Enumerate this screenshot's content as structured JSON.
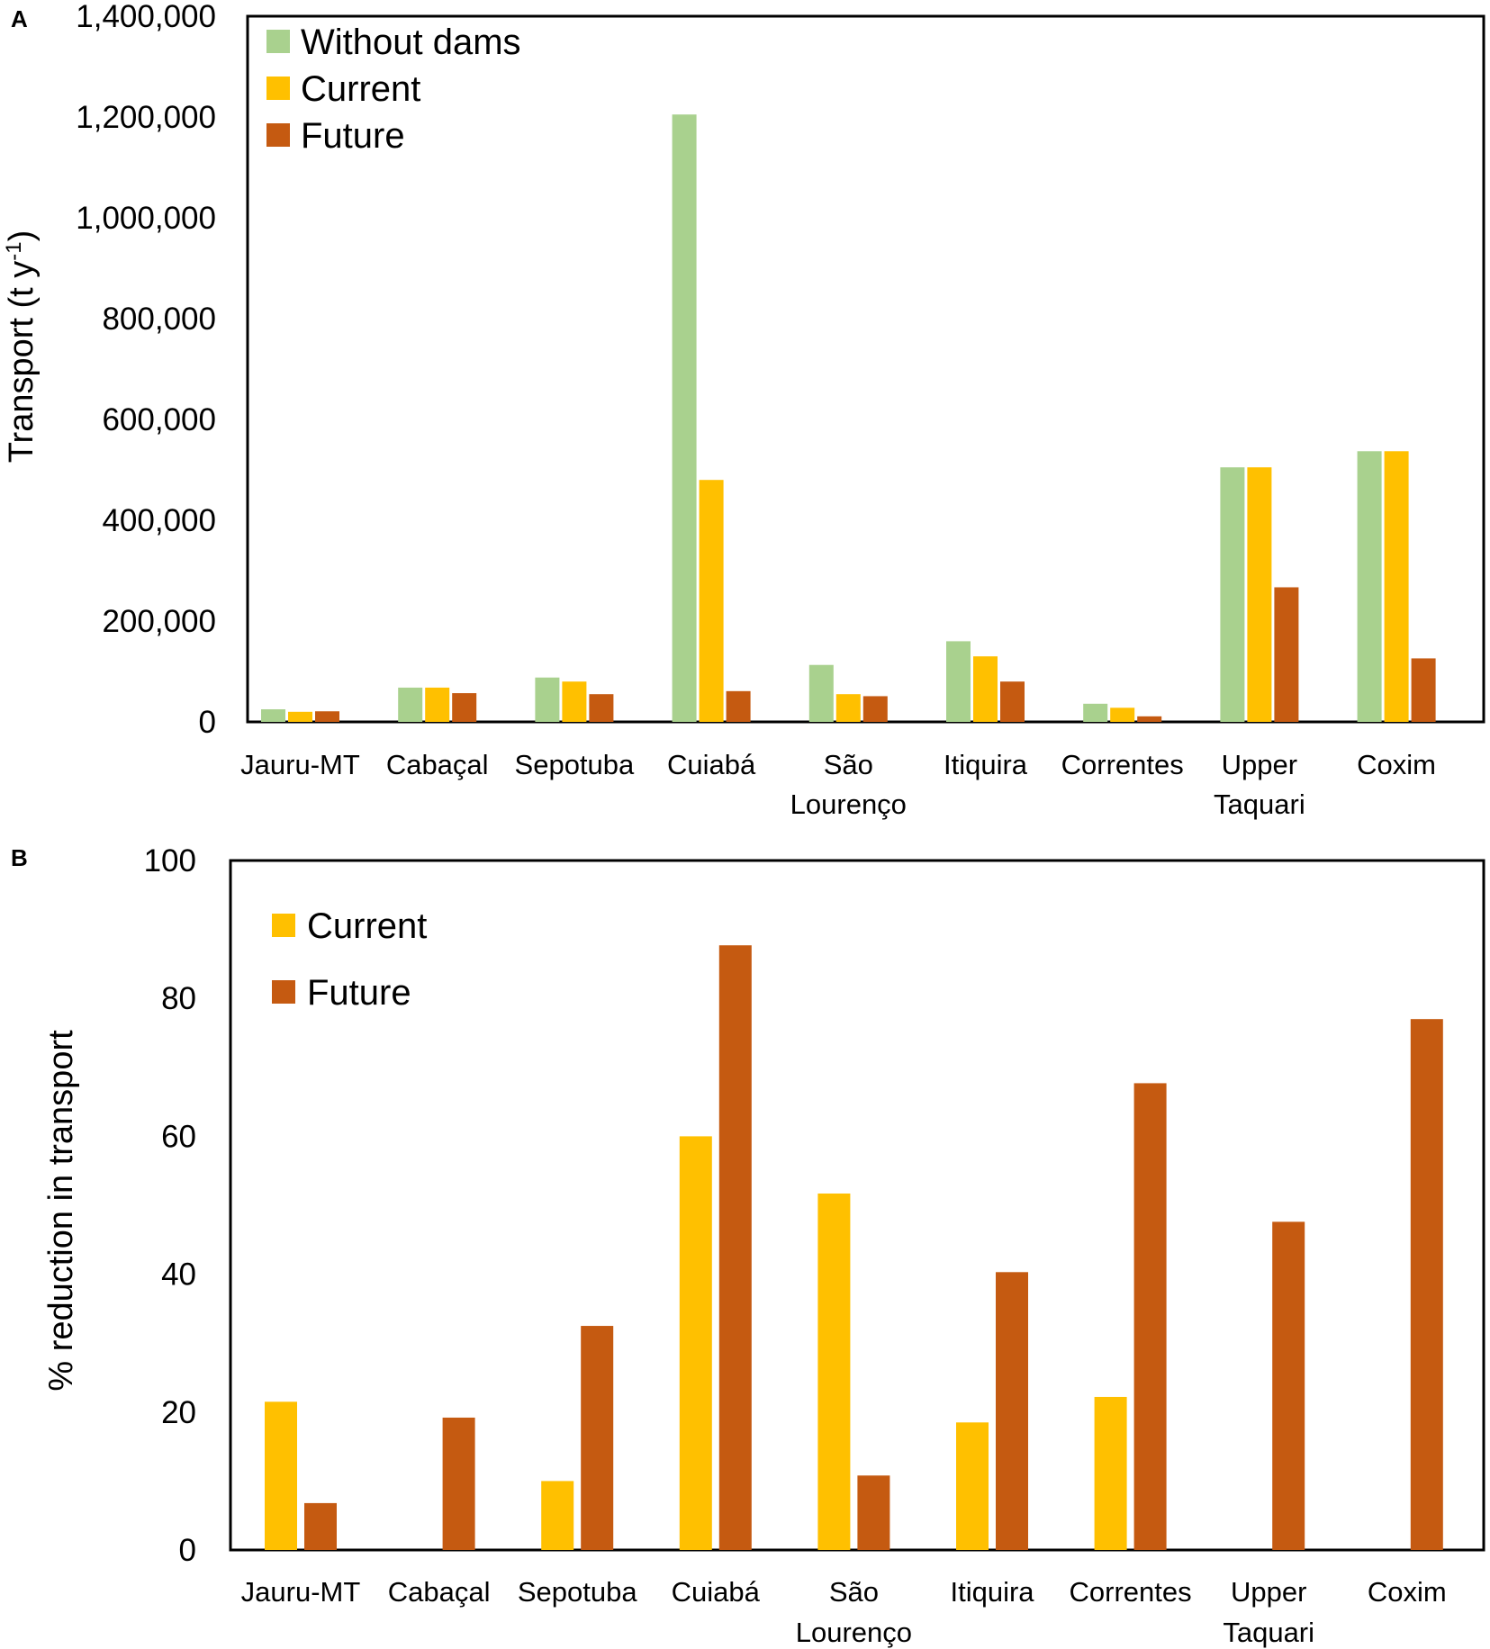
{
  "colors": {
    "without_dams": "#a9d18e",
    "current": "#ffc000",
    "future": "#c55a11"
  },
  "chart_data": [
    {
      "panel": "A",
      "type": "bar",
      "title": "",
      "xlabel": "",
      "ylabel": "Transport (t y",
      "ylabel_sup": "-1",
      "ylabel_end": ")",
      "ylim": [
        0,
        1400000
      ],
      "yticks": [
        "0",
        "200,000",
        "400,000",
        "600,000",
        "800,000",
        "1,000,000",
        "1,200,000",
        "1,400,000"
      ],
      "grid": false,
      "legend_position": "top-left",
      "categories": [
        [
          "Jauru-MT"
        ],
        [
          "Cabaçal"
        ],
        [
          "Sepotuba"
        ],
        [
          "Cuiabá"
        ],
        [
          "São",
          "Lourenço"
        ],
        [
          "Itiquira"
        ],
        [
          "Correntes"
        ],
        [
          "Upper",
          "Taquari"
        ],
        [
          "Coxim"
        ]
      ],
      "series": [
        {
          "name": "Without dams",
          "color_key": "without_dams",
          "values": [
            25000,
            68000,
            88000,
            1205000,
            113000,
            160000,
            36000,
            505000,
            537000
          ]
        },
        {
          "name": "Current",
          "color_key": "current",
          "values": [
            20000,
            68000,
            80000,
            480000,
            55000,
            130000,
            28000,
            505000,
            537000
          ]
        },
        {
          "name": "Future",
          "color_key": "future",
          "values": [
            21000,
            57000,
            55000,
            61000,
            51000,
            80000,
            11000,
            267000,
            126000
          ]
        }
      ]
    },
    {
      "panel": "B",
      "type": "bar",
      "title": "",
      "xlabel": "",
      "ylabel": "% reduction in transport",
      "ylim": [
        0,
        100
      ],
      "yticks": [
        "0",
        "20",
        "40",
        "60",
        "80",
        "100"
      ],
      "grid": false,
      "legend_position": "top-left",
      "categories": [
        [
          "Jauru-MT"
        ],
        [
          "Cabaçal"
        ],
        [
          "Sepotuba"
        ],
        [
          "Cuiabá"
        ],
        [
          "São",
          "Lourenço"
        ],
        [
          "Itiquira"
        ],
        [
          "Correntes"
        ],
        [
          "Upper",
          "Taquari"
        ],
        [
          "Coxim"
        ]
      ],
      "series": [
        {
          "name": "Current",
          "color_key": "current",
          "values": [
            21.5,
            0,
            10,
            60,
            51.7,
            18.5,
            22.2,
            0,
            0
          ]
        },
        {
          "name": "Future",
          "color_key": "future",
          "values": [
            6.8,
            19.2,
            32.5,
            87.7,
            10.8,
            40.3,
            67.7,
            47.6,
            77
          ]
        }
      ]
    }
  ]
}
